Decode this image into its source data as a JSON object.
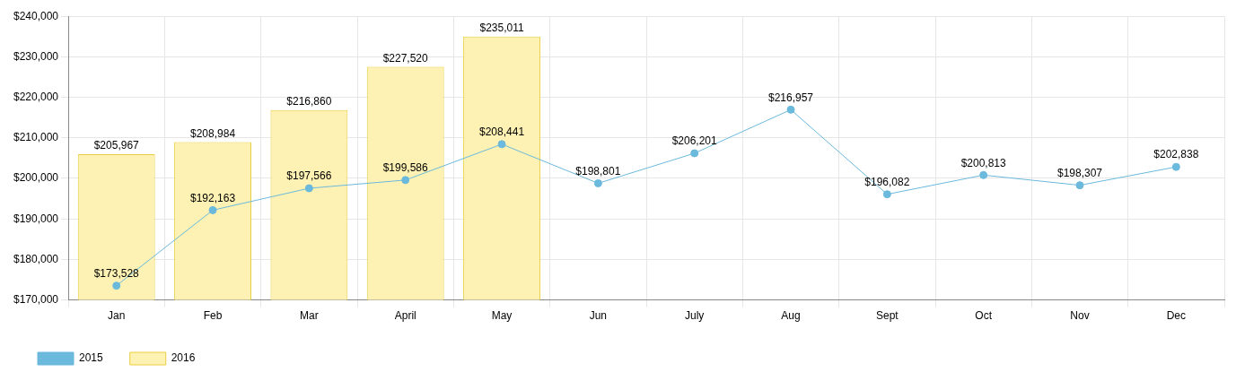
{
  "chart_data": {
    "type": "bar",
    "categories": [
      "Jan",
      "Feb",
      "Mar",
      "April",
      "May",
      "Jun",
      "July",
      "Aug",
      "Sept",
      "Oct",
      "Nov",
      "Dec"
    ],
    "series": [
      {
        "name": "2015",
        "type": "line",
        "color": "#6bb9dc",
        "values": [
          173528,
          192163,
          197566,
          199586,
          208441,
          198801,
          206201,
          216957,
          196082,
          200813,
          198307,
          202838
        ],
        "value_labels": [
          "$173,528",
          "$192,163",
          "$197,566",
          "$199,586",
          "$208,441",
          "$198,801",
          "$206,201",
          "$216,957",
          "$196,082",
          "$200,813",
          "$198,307",
          "$202,838"
        ]
      },
      {
        "name": "2016",
        "color": "#fdf2b3",
        "values": [
          205967,
          208984,
          216860,
          227520,
          235011,
          null,
          null,
          null,
          null,
          null,
          null,
          null
        ],
        "value_labels": [
          "$205,967",
          "$208,984",
          "$216,860",
          "$227,520",
          "$235,011",
          null,
          null,
          null,
          null,
          null,
          null,
          null
        ]
      }
    ],
    "ylim": [
      170000,
      240000
    ],
    "yticks": [
      {
        "value": 170000,
        "label": "$170,000"
      },
      {
        "value": 180000,
        "label": "$180,000"
      },
      {
        "value": 190000,
        "label": "$190,000"
      },
      {
        "value": 200000,
        "label": "$200,000"
      },
      {
        "value": 210000,
        "label": "$210,000"
      },
      {
        "value": 220000,
        "label": "$220,000"
      },
      {
        "value": 230000,
        "label": "$230,000"
      },
      {
        "value": 240000,
        "label": "$240,000"
      }
    ],
    "grid": true,
    "legend": "bottom left",
    "marker": "circle",
    "line_style": "solid"
  }
}
